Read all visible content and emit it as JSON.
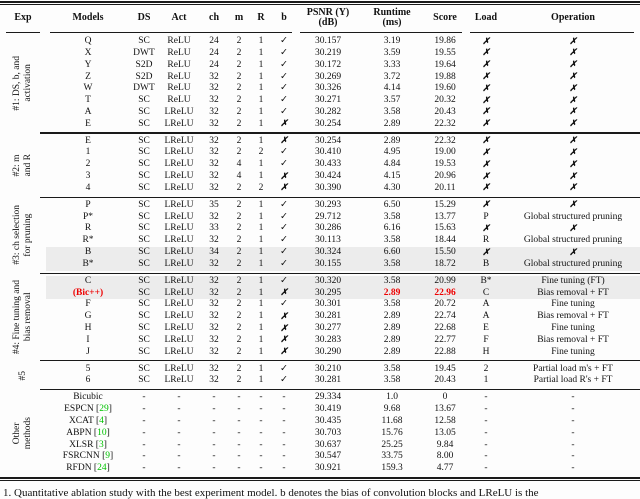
{
  "table": {
    "columns": [
      {
        "id": "exp",
        "label": "Exp"
      },
      {
        "id": "models",
        "label": "Models"
      },
      {
        "id": "ds",
        "label": "DS"
      },
      {
        "id": "act",
        "label": "Act"
      },
      {
        "id": "ch",
        "label": "ch"
      },
      {
        "id": "m",
        "label": "m"
      },
      {
        "id": "r",
        "label": "R"
      },
      {
        "id": "b",
        "label": "b"
      },
      {
        "id": "psnr",
        "label": "PSNR (Y)",
        "label2": "(dB)"
      },
      {
        "id": "runtime",
        "label": "Runtime",
        "label2": "(ms)"
      },
      {
        "id": "score",
        "label": "Score"
      },
      {
        "id": "load",
        "label": "Load"
      },
      {
        "id": "operation",
        "label": "Operation"
      }
    ],
    "marks": {
      "check": "✓",
      "cross": "✗"
    },
    "colors": {
      "highlight_row": "#ececec",
      "accent_red": "#ee0000",
      "citation_green": "#00c300",
      "rule": "#1a1a1a"
    },
    "sections": [
      {
        "exp_label": "#1: DS, b, and\nactivation",
        "rows": [
          {
            "models": "Q",
            "ds": "SC",
            "act": "ReLU",
            "ch": "24",
            "m": "2",
            "r": "1",
            "b": "✓",
            "psnr": "30.157",
            "runtime": "3.19",
            "score": "19.86",
            "load": "✗",
            "operation": "✗"
          },
          {
            "models": "X",
            "ds": "DWT",
            "act": "ReLU",
            "ch": "24",
            "m": "2",
            "r": "1",
            "b": "✓",
            "psnr": "30.219",
            "runtime": "3.59",
            "score": "19.55",
            "load": "✗",
            "operation": "✗"
          },
          {
            "models": "Y",
            "ds": "S2D",
            "act": "ReLU",
            "ch": "24",
            "m": "2",
            "r": "1",
            "b": "✓",
            "psnr": "30.172",
            "runtime": "3.33",
            "score": "19.64",
            "load": "✗",
            "operation": "✗"
          },
          {
            "models": "Z",
            "ds": "S2D",
            "act": "ReLU",
            "ch": "32",
            "m": "2",
            "r": "1",
            "b": "✓",
            "psnr": "30.269",
            "runtime": "3.72",
            "score": "19.88",
            "load": "✗",
            "operation": "✗"
          },
          {
            "models": "W",
            "ds": "DWT",
            "act": "ReLU",
            "ch": "32",
            "m": "2",
            "r": "1",
            "b": "✓",
            "psnr": "30.326",
            "runtime": "4.14",
            "score": "19.60",
            "load": "✗",
            "operation": "✗"
          },
          {
            "models": "T",
            "ds": "SC",
            "act": "ReLU",
            "ch": "32",
            "m": "2",
            "r": "1",
            "b": "✓",
            "psnr": "30.271",
            "runtime": "3.57",
            "score": "20.32",
            "load": "✗",
            "operation": "✗"
          },
          {
            "models": "A",
            "ds": "SC",
            "act": "LReLU",
            "ch": "32",
            "m": "2",
            "r": "1",
            "b": "✓",
            "psnr": "30.282",
            "runtime": "3.58",
            "score": "20.43",
            "load": "✗",
            "operation": "✗"
          },
          {
            "models": "E",
            "ds": "SC",
            "act": "LReLU",
            "ch": "32",
            "m": "2",
            "r": "1",
            "b": "✗",
            "psnr": "30.254",
            "runtime": "2.89",
            "score": "22.32",
            "load": "✗",
            "operation": "✗"
          }
        ]
      },
      {
        "exp_label": "#2: m\nand R",
        "rows": [
          {
            "models": "E",
            "ds": "SC",
            "act": "LReLU",
            "ch": "32",
            "m": "2",
            "r": "1",
            "b": "✗",
            "psnr": "30.254",
            "runtime": "2.89",
            "score": "22.32",
            "load": "✗",
            "operation": "✗"
          },
          {
            "models": "1",
            "ds": "SC",
            "act": "LReLU",
            "ch": "32",
            "m": "2",
            "r": "2",
            "b": "✓",
            "psnr": "30.410",
            "runtime": "4.95",
            "score": "19.00",
            "load": "✗",
            "operation": "✗"
          },
          {
            "models": "2",
            "ds": "SC",
            "act": "LReLU",
            "ch": "32",
            "m": "4",
            "r": "1",
            "b": "✓",
            "psnr": "30.433",
            "runtime": "4.84",
            "score": "19.53",
            "load": "✗",
            "operation": "✗"
          },
          {
            "models": "3",
            "ds": "SC",
            "act": "LReLU",
            "ch": "32",
            "m": "4",
            "r": "1",
            "b": "✗",
            "psnr": "30.424",
            "runtime": "4.15",
            "score": "20.96",
            "load": "✗",
            "operation": "✗"
          },
          {
            "models": "4",
            "ds": "SC",
            "act": "LReLU",
            "ch": "32",
            "m": "2",
            "r": "2",
            "b": "✗",
            "psnr": "30.390",
            "runtime": "4.30",
            "score": "20.11",
            "load": "✗",
            "operation": "✗"
          }
        ]
      },
      {
        "exp_label": "#3: ch selection\nfor pruning",
        "rows": [
          {
            "models": "P",
            "ds": "SC",
            "act": "LReLU",
            "ch": "35",
            "m": "2",
            "r": "1",
            "b": "✓",
            "psnr": "30.293",
            "runtime": "6.50",
            "score": "15.29",
            "load": "✗",
            "operation": "✗"
          },
          {
            "models": "P*",
            "ds": "SC",
            "act": "LReLU",
            "ch": "32",
            "m": "2",
            "r": "1",
            "b": "✓",
            "psnr": "29.712",
            "runtime": "3.58",
            "score": "13.77",
            "load": "P",
            "operation": "Global structured pruning"
          },
          {
            "models": "R",
            "ds": "SC",
            "act": "LReLU",
            "ch": "33",
            "m": "2",
            "r": "1",
            "b": "✓",
            "psnr": "30.286",
            "runtime": "6.16",
            "score": "15.63",
            "load": "✗",
            "operation": "✗"
          },
          {
            "models": "R*",
            "ds": "SC",
            "act": "LReLU",
            "ch": "32",
            "m": "2",
            "r": "1",
            "b": "✓",
            "psnr": "30.113",
            "runtime": "3.58",
            "score": "18.44",
            "load": "R",
            "operation": "Global structured pruning"
          },
          {
            "models": "B",
            "ds": "SC",
            "act": "LReLU",
            "ch": "34",
            "m": "2",
            "r": "1",
            "b": "✓",
            "psnr": "30.324",
            "runtime": "6.60",
            "score": "15.50",
            "load": "✗",
            "operation": "✗",
            "shaded": true
          },
          {
            "models": "B*",
            "ds": "SC",
            "act": "LReLU",
            "ch": "32",
            "m": "2",
            "r": "1",
            "b": "✓",
            "psnr": "30.155",
            "runtime": "3.58",
            "score": "18.72",
            "load": "B",
            "operation": "Global structured pruning",
            "shaded": true
          }
        ]
      },
      {
        "exp_label": "#4: Fine tuning and\nbias removal",
        "rows": [
          {
            "models": "C",
            "ds": "SC",
            "act": "LReLU",
            "ch": "32",
            "m": "2",
            "r": "1",
            "b": "✓",
            "psnr": "30.320",
            "runtime": "3.58",
            "score": "20.99",
            "load": "B*",
            "operation": "Fine tuning (FT)",
            "shaded": true
          },
          {
            "models": "(Bic++)",
            "ds": "SC",
            "act": "LReLU",
            "ch": "32",
            "m": "2",
            "r": "1",
            "b": "✗",
            "psnr": "30.295",
            "runtime": "2.89",
            "score": "22.96",
            "load": "C",
            "operation": "Bias removal + FT",
            "shaded": true,
            "red": [
              "models",
              "runtime",
              "score"
            ]
          },
          {
            "models": "F",
            "ds": "SC",
            "act": "LReLU",
            "ch": "32",
            "m": "2",
            "r": "1",
            "b": "✓",
            "psnr": "30.301",
            "runtime": "3.58",
            "score": "20.72",
            "load": "A",
            "operation": "Fine tuning"
          },
          {
            "models": "G",
            "ds": "SC",
            "act": "LReLU",
            "ch": "32",
            "m": "2",
            "r": "1",
            "b": "✗",
            "psnr": "30.281",
            "runtime": "2.89",
            "score": "22.74",
            "load": "A",
            "operation": "Bias removal + FT"
          },
          {
            "models": "H",
            "ds": "SC",
            "act": "LReLU",
            "ch": "32",
            "m": "2",
            "r": "1",
            "b": "✗",
            "psnr": "30.277",
            "runtime": "2.89",
            "score": "22.68",
            "load": "E",
            "operation": "Fine tuning"
          },
          {
            "models": "I",
            "ds": "SC",
            "act": "LReLU",
            "ch": "32",
            "m": "2",
            "r": "1",
            "b": "✗",
            "psnr": "30.283",
            "runtime": "2.89",
            "score": "22.77",
            "load": "F",
            "operation": "Bias removal + FT"
          },
          {
            "models": "J",
            "ds": "SC",
            "act": "LReLU",
            "ch": "32",
            "m": "2",
            "r": "1",
            "b": "✗",
            "psnr": "30.290",
            "runtime": "2.89",
            "score": "22.88",
            "load": "H",
            "operation": "Fine tuning"
          }
        ]
      },
      {
        "exp_label": "#5",
        "rows": [
          {
            "models": "5",
            "ds": "SC",
            "act": "LReLU",
            "ch": "32",
            "m": "2",
            "r": "1",
            "b": "✓",
            "psnr": "30.210",
            "runtime": "3.58",
            "score": "19.45",
            "load": "2",
            "operation": "Partial load m's + FT"
          },
          {
            "models": "6",
            "ds": "SC",
            "act": "LReLU",
            "ch": "32",
            "m": "2",
            "r": "1",
            "b": "✓",
            "psnr": "30.281",
            "runtime": "3.58",
            "score": "20.43",
            "load": "1",
            "operation": "Partial load R's + FT"
          }
        ]
      },
      {
        "exp_label": "Other\nmethods",
        "rows": [
          {
            "models": "Bicubic",
            "ds": "-",
            "act": "-",
            "ch": "-",
            "m": "-",
            "r": "-",
            "b": "-",
            "psnr": "29.334",
            "runtime": "1.0",
            "score": "0",
            "load": "-",
            "operation": "-"
          },
          {
            "models": "ESPCN",
            "cite": "29",
            "ds": "-",
            "act": "-",
            "ch": "-",
            "m": "-",
            "r": "-",
            "b": "-",
            "psnr": "30.419",
            "runtime": "9.68",
            "score": "13.67",
            "load": "-",
            "operation": "-"
          },
          {
            "models": "XCAT",
            "cite": "4",
            "ds": "-",
            "act": "-",
            "ch": "-",
            "m": "-",
            "r": "-",
            "b": "-",
            "psnr": "30.435",
            "runtime": "11.68",
            "score": "12.58",
            "load": "-",
            "operation": "-"
          },
          {
            "models": "ABPN",
            "cite": "10",
            "ds": "-",
            "act": "-",
            "ch": "-",
            "m": "-",
            "r": "-",
            "b": "-",
            "psnr": "30.703",
            "runtime": "15.76",
            "score": "13.05",
            "load": "-",
            "operation": "-"
          },
          {
            "models": "XLSR",
            "cite": "3",
            "ds": "-",
            "act": "-",
            "ch": "-",
            "m": "-",
            "r": "-",
            "b": "-",
            "psnr": "30.637",
            "runtime": "25.25",
            "score": "9.84",
            "load": "-",
            "operation": "-"
          },
          {
            "models": "FSRCNN",
            "cite": "9",
            "ds": "-",
            "act": "-",
            "ch": "-",
            "m": "-",
            "r": "-",
            "b": "-",
            "psnr": "30.547",
            "runtime": "33.75",
            "score": "8.00",
            "load": "-",
            "operation": "-"
          },
          {
            "models": "RFDN",
            "cite": "24",
            "ds": "-",
            "act": "-",
            "ch": "-",
            "m": "-",
            "r": "-",
            "b": "-",
            "psnr": "30.921",
            "runtime": "159.3",
            "score": "4.77",
            "load": "-",
            "operation": "-"
          }
        ]
      }
    ]
  },
  "caption": "1. Quantitative ablation study with the best experiment model. b denotes the bias of convolution blocks and LReLU is the"
}
